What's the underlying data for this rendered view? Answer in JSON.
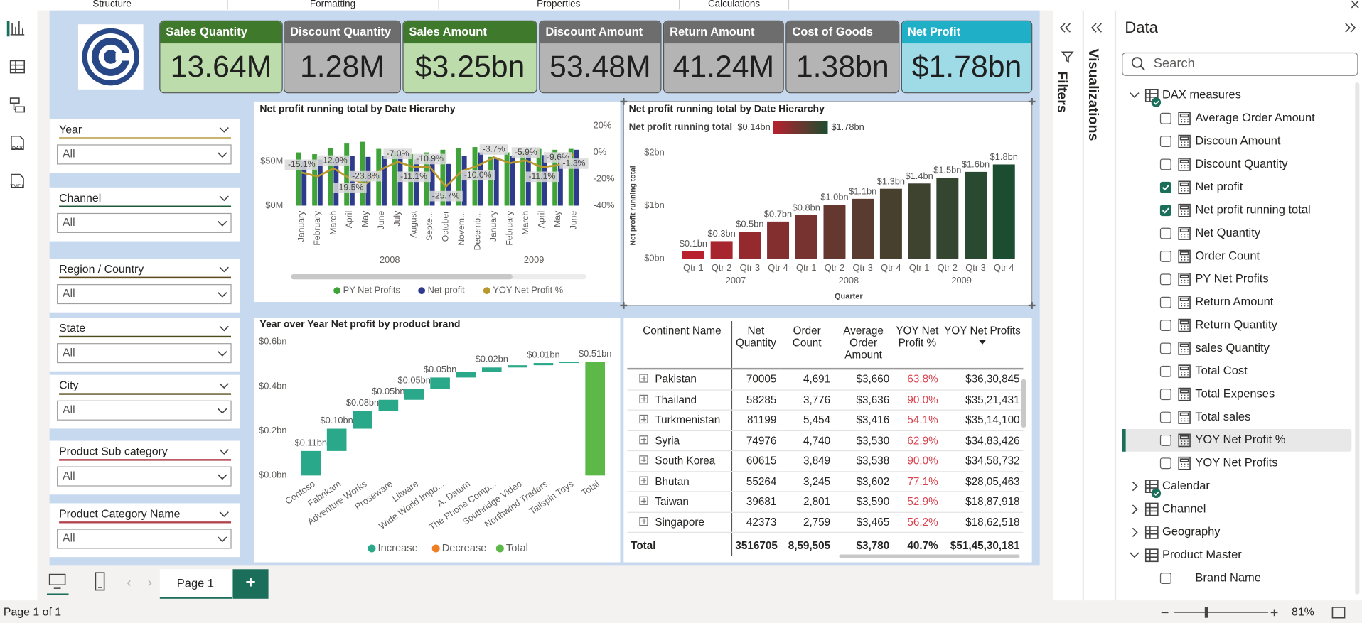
{
  "ribbon_tabs": [
    "Structure",
    "Formatting",
    "Properties",
    "Calculations"
  ],
  "nav_labels": [
    "DAX",
    "TMDL"
  ],
  "kpi_cards": [
    {
      "title": "Sales Quantity",
      "value": "13.64M",
      "title_color": "#3f7a2c",
      "body_color": "#bcdcab"
    },
    {
      "title": "Discount Quantity",
      "value": "1.28M",
      "title_color": "#6d6d6d",
      "body_color": "#b4b4b4"
    },
    {
      "title": "Sales Amount",
      "value": "$3.25bn",
      "title_color": "#3f7a2c",
      "body_color": "#bcdcab"
    },
    {
      "title": "Discount Amount",
      "value": "53.48M",
      "title_color": "#6d6d6d",
      "body_color": "#b4b4b4"
    },
    {
      "title": "Return Amount",
      "value": "41.24M",
      "title_color": "#6d6d6d",
      "body_color": "#b4b4b4"
    },
    {
      "title": "Cost of Goods",
      "value": "1.38bn",
      "title_color": "#6d6d6d",
      "body_color": "#b4b4b4"
    },
    {
      "title": "Net Profit",
      "value": "$1.78bn",
      "title_color": "#1fb0c8",
      "body_color": "#9edbe6"
    }
  ],
  "slicers": [
    {
      "label": "Year",
      "value": "All",
      "color": "#c9b56f"
    },
    {
      "label": "Channel",
      "value": "All",
      "color": "#1f5b38"
    },
    {
      "label": "Region / Country",
      "value": "All",
      "color": "#5e4a1d"
    },
    {
      "label": "State",
      "value": "All",
      "color": "#4d4a1a"
    },
    {
      "label": "City",
      "value": "All",
      "color": "#5c5220"
    },
    {
      "label": "Product Sub category",
      "value": "All",
      "color": "#b2434f"
    },
    {
      "label": "Product Category Name",
      "value": "All",
      "color": "#b2434f"
    }
  ],
  "chart_data": [
    {
      "type": "combo",
      "title": "Net profit running total by Date Hierarchy",
      "categories": [
        "January",
        "February",
        "March",
        "April",
        "May",
        "June",
        "July",
        "August",
        "Septe...",
        "October",
        "Novem...",
        "Decemb...",
        "January",
        "February",
        "March",
        "April",
        "May",
        "June"
      ],
      "x_groups": [
        {
          "label": "2008",
          "count": 12
        },
        {
          "label": "2009",
          "count": 6
        }
      ],
      "series": [
        {
          "name": "PY Net Profits",
          "color": "#3fa33a",
          "values": [
            60,
            58,
            65,
            70,
            72,
            64,
            62,
            58,
            60,
            63,
            65,
            66,
            55,
            60,
            62,
            64,
            63,
            64
          ]
        },
        {
          "name": "Net profit",
          "color": "#2e3a8c",
          "values": [
            50,
            52,
            53,
            56,
            55,
            56,
            58,
            52,
            53,
            47,
            56,
            60,
            53,
            56,
            58,
            57,
            57,
            63
          ]
        },
        {
          "name": "YOY Net Profit %",
          "color": "#b8982f",
          "axis": "y2",
          "values": [
            -15.1,
            -18.0,
            -12.0,
            -19.5,
            -23.8,
            -12.5,
            -7.0,
            -11.1,
            -10.9,
            -25.7,
            -14.0,
            -10.0,
            -3.7,
            -8.0,
            -5.9,
            -11.1,
            -9.6,
            -1.3
          ],
          "value_labels": [
            "-15.1%",
            null,
            "-12.0%",
            "-19.5%",
            "-23.8%",
            null,
            "-7.0%",
            "-11.1%",
            "-10.9%",
            "-25.7%",
            null,
            "-10.0%",
            "-3.7%",
            null,
            "-5.9%",
            "-11.1%",
            "-9.6%",
            "-1.3%"
          ]
        }
      ],
      "ylim": [
        0,
        90
      ],
      "yticks": [
        {
          "value": 0,
          "label": "$0M"
        },
        {
          "value": 50,
          "label": "$50M"
        }
      ],
      "y2lim": [
        -40,
        20
      ],
      "y2ticks": [
        {
          "value": 20,
          "label": "20%"
        },
        {
          "value": 0,
          "label": "0%"
        },
        {
          "value": -20,
          "label": "-20%"
        },
        {
          "value": -40,
          "label": "-40%"
        }
      ],
      "grid": false,
      "legend": "bottom"
    },
    {
      "type": "bar",
      "title": "Net profit running total by Date Hierarchy",
      "legend_title": "Net profit running total",
      "color_scale": {
        "min": {
          "value": 0.14,
          "label": "$0.14bn",
          "color": "#b8202e"
        },
        "max": {
          "value": 1.78,
          "label": "$1.78bn",
          "color": "#1c4d30"
        }
      },
      "categories": [
        "Qtr 1",
        "Qtr 2",
        "Qtr 3",
        "Qtr 4",
        "Qtr 1",
        "Qtr 2",
        "Qtr 3",
        "Qtr 4",
        "Qtr 1",
        "Qtr 2",
        "Qtr 3",
        "Qtr 4"
      ],
      "x_groups": [
        {
          "label": "2007",
          "count": 4
        },
        {
          "label": "2008",
          "count": 4
        },
        {
          "label": "2009",
          "count": 4
        }
      ],
      "values": [
        0.14,
        0.33,
        0.51,
        0.7,
        0.82,
        1.02,
        1.13,
        1.32,
        1.42,
        1.53,
        1.64,
        1.78
      ],
      "value_labels": [
        "$0.1bn",
        "$0.3bn",
        "$0.5bn",
        "$0.7bn",
        "$0.8bn",
        "$1.0bn",
        "$1.1bn",
        "$1.3bn",
        "$1.4bn",
        "$1.5bn",
        "$1.6bn",
        "$1.8bn"
      ],
      "ylim": [
        0,
        2.1
      ],
      "yticks": [
        {
          "value": 0,
          "label": "$0bn"
        },
        {
          "value": 1,
          "label": "$1bn"
        },
        {
          "value": 2,
          "label": "$2bn"
        }
      ],
      "ylabel": "Net profit running total",
      "xlabel": "Quarter",
      "grid": false
    },
    {
      "type": "waterfall",
      "title": "Year over Year Net profit by product brand",
      "categories": [
        "Contoso",
        "Fabrikam",
        "Adventure Works",
        "Proseware",
        "Litware",
        "Wide World Impo...",
        "A. Datum",
        "The Phone Comp...",
        "Southridge Video",
        "Northwind Traders",
        "Tailspin Toys"
      ],
      "values": [
        0.11,
        0.1,
        0.08,
        0.05,
        0.05,
        0.05,
        0.025,
        0.02,
        0.01,
        0.01,
        0.005
      ],
      "value_labels": [
        "$0.11bn",
        "$0.10bn",
        "$0.08bn",
        "$0.05bn",
        "$0.05bn",
        "$0.05bn",
        null,
        "$0.02bn",
        null,
        "$0.01bn",
        null
      ],
      "total": {
        "label": "Total",
        "value": 0.51,
        "value_label": "$0.51bn"
      },
      "legend_items": [
        {
          "name": "Increase",
          "color": "#2aa98a"
        },
        {
          "name": "Decrease",
          "color": "#ef7d22"
        },
        {
          "name": "Total",
          "color": "#5cb947"
        }
      ],
      "ylim": [
        0,
        0.6
      ],
      "yticks": [
        {
          "value": 0,
          "label": "$0.0bn"
        },
        {
          "value": 0.2,
          "label": "$0.2bn"
        },
        {
          "value": 0.4,
          "label": "$0.4bn"
        },
        {
          "value": 0.6,
          "label": "$0.6bn"
        }
      ],
      "grid": false,
      "legend": "bottom"
    }
  ],
  "table": {
    "columns": [
      "Continent Name",
      "Net Quantity",
      "Order Count",
      "Average Order Amount",
      "YOY Net Profit %",
      "YOY Net Profits"
    ],
    "rows": [
      [
        "Pakistan",
        "70005",
        "4,691",
        "$3,660",
        "63.8%",
        "$36,30,845"
      ],
      [
        "Thailand",
        "58285",
        "3,776",
        "$3,636",
        "90.0%",
        "$35,21,431"
      ],
      [
        "Turkmenistan",
        "81199",
        "5,454",
        "$3,416",
        "54.1%",
        "$35,14,100"
      ],
      [
        "Syria",
        "74976",
        "4,740",
        "$3,530",
        "62.9%",
        "$34,83,426"
      ],
      [
        "South Korea",
        "60615",
        "3,849",
        "$3,538",
        "90.0%",
        "$34,58,732"
      ],
      [
        "Bhutan",
        "55264",
        "3,245",
        "$3,602",
        "77.1%",
        "$28,05,463"
      ],
      [
        "Taiwan",
        "39681",
        "2,801",
        "$3,590",
        "52.9%",
        "$18,87,918"
      ],
      [
        "Singapore",
        "42373",
        "2,759",
        "$3,465",
        "56.2%",
        "$18,62,518"
      ]
    ],
    "total": [
      "Total",
      "3516705",
      "8,59,505",
      "$3,780",
      "40.7%",
      "$51,45,30,181"
    ]
  },
  "side_tabs": [
    "Filters",
    "Visualizations"
  ],
  "data_pane": {
    "title": "Data",
    "search_placeholder": "Search",
    "groups": [
      {
        "name": "DAX measures",
        "expanded": true,
        "badge": true,
        "icon": "measure",
        "items": [
          {
            "name": "Average Order Amount",
            "checked": false
          },
          {
            "name": "Discoun Amount",
            "checked": false
          },
          {
            "name": "Discount Quantity",
            "checked": false
          },
          {
            "name": "Net profit",
            "checked": true
          },
          {
            "name": "Net profit running total",
            "checked": true
          },
          {
            "name": "Net Quantity",
            "checked": false
          },
          {
            "name": "Order Count",
            "checked": false
          },
          {
            "name": "PY Net Profits",
            "checked": false
          },
          {
            "name": "Return Amount",
            "checked": false
          },
          {
            "name": "Return Quantity",
            "checked": false
          },
          {
            "name": "sales Quantity",
            "checked": false
          },
          {
            "name": "Total Cost",
            "checked": false
          },
          {
            "name": "Total Expenses",
            "checked": false
          },
          {
            "name": "Total sales",
            "checked": false
          },
          {
            "name": "YOY Net Profit %",
            "checked": false,
            "selected": true
          },
          {
            "name": "YOY Net Profits",
            "checked": false
          }
        ]
      },
      {
        "name": "Calendar",
        "expanded": false,
        "badge": true
      },
      {
        "name": "Channel",
        "expanded": false,
        "badge": false
      },
      {
        "name": "Geography",
        "expanded": false,
        "badge": false
      },
      {
        "name": "Product Master",
        "expanded": true,
        "badge": false,
        "icon": "column",
        "items": [
          {
            "name": "Brand Name",
            "checked": false
          }
        ]
      }
    ]
  },
  "page_tabs": [
    "Page 1"
  ],
  "add_page": "+",
  "status": "Page 1 of 1",
  "zoom": "81%"
}
